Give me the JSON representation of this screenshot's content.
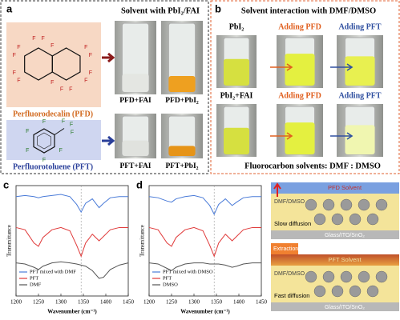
{
  "panel_a": {
    "label": "a",
    "heading": "Solvent with PbI₂/FAI",
    "pfd_name": "Perfluorodecalin (PFD)",
    "pft_name": "Perfluorotoluene (PFT)",
    "pfd_atoms": [
      "F",
      "F",
      "F",
      "F",
      "F",
      "F",
      "F",
      "F",
      "F",
      "F",
      "F",
      "F",
      "F",
      "F",
      "F",
      "F",
      "F",
      "F"
    ],
    "pft_atoms": [
      "F",
      "F",
      "F",
      "F",
      "F",
      "F",
      "F",
      "F"
    ],
    "vials": [
      "PFD+FAI",
      "PFD+PbI₂",
      "PFT+FAI",
      "PFT+PbI₂"
    ]
  },
  "panel_b": {
    "label": "b",
    "heading": "Solvent interaction with DMF/DMSO",
    "rows": [
      "PbI₂",
      "PbI₂+FAI"
    ],
    "columns": [
      "Adding PFD",
      "Adding PFT",
      "Adding PFD",
      "Adding PFT"
    ],
    "footer": "Fluorocarbon solvents: DMF : DMSO"
  },
  "chart_data": [
    {
      "type": "line",
      "panel": "c",
      "x_label": "Wavenumber (cm⁻¹)",
      "y_label": "Transmittance",
      "x": [
        1200,
        1220,
        1240,
        1250,
        1260,
        1280,
        1300,
        1320,
        1335,
        1345,
        1355,
        1370,
        1385,
        1395,
        1410,
        1430,
        1450
      ],
      "xlim": [
        1200,
        1450
      ],
      "xticks": [
        1200,
        1250,
        1300,
        1350,
        1400,
        1450
      ],
      "ylim": [
        0,
        10
      ],
      "reference_line": 1345,
      "legend": "lower left",
      "series": [
        {
          "name": "PFT mixed with DMF",
          "color": "#4a7bd8",
          "values": [
            9.0,
            9.1,
            9.0,
            8.9,
            9.0,
            9.1,
            9.2,
            9.0,
            8.3,
            7.6,
            8.4,
            8.8,
            8.0,
            8.4,
            8.9,
            9.0,
            9.0
          ]
        },
        {
          "name": "PFT",
          "color": "#e03a3a",
          "values": [
            6.2,
            6.0,
            4.8,
            4.5,
            5.3,
            6.0,
            6.2,
            5.9,
            4.6,
            3.6,
            4.8,
            5.6,
            5.0,
            5.4,
            6.0,
            6.2,
            6.2
          ]
        },
        {
          "name": "DMF",
          "color": "#555555",
          "values": [
            3.0,
            2.9,
            2.6,
            2.4,
            2.7,
            3.0,
            3.1,
            3.0,
            2.9,
            2.8,
            2.7,
            2.3,
            1.6,
            1.7,
            2.4,
            2.8,
            3.0
          ]
        }
      ]
    },
    {
      "type": "line",
      "panel": "d",
      "x_label": "Wavenumber (cm⁻¹)",
      "y_label": "Transmittance",
      "x": [
        1200,
        1220,
        1240,
        1250,
        1260,
        1280,
        1300,
        1320,
        1335,
        1345,
        1355,
        1370,
        1385,
        1395,
        1410,
        1430,
        1450
      ],
      "xlim": [
        1200,
        1450
      ],
      "xticks": [
        1200,
        1250,
        1300,
        1350,
        1400,
        1450
      ],
      "ylim": [
        0,
        10
      ],
      "reference_line": 1345,
      "legend": "lower left",
      "series": [
        {
          "name": "PFT mixed with DMSO",
          "color": "#4a7bd8",
          "values": [
            9.0,
            8.9,
            8.6,
            8.5,
            8.8,
            9.0,
            9.1,
            8.9,
            8.2,
            7.4,
            8.3,
            8.8,
            8.2,
            8.5,
            8.9,
            9.0,
            9.0
          ]
        },
        {
          "name": "PFT",
          "color": "#e03a3a",
          "values": [
            6.2,
            6.0,
            4.8,
            4.5,
            5.3,
            6.0,
            6.2,
            5.9,
            4.6,
            3.6,
            4.8,
            5.6,
            5.0,
            5.4,
            6.0,
            6.2,
            6.2
          ]
        },
        {
          "name": "DMSO",
          "color": "#555555",
          "values": [
            3.0,
            2.9,
            2.5,
            2.3,
            2.6,
            2.9,
            3.0,
            3.0,
            2.9,
            2.9,
            2.9,
            2.8,
            2.6,
            2.7,
            2.9,
            3.0,
            3.0
          ]
        }
      ]
    }
  ],
  "panel_e": {
    "label": "e",
    "top": {
      "solvent": "PFD Solvent",
      "layer": "DMF/DMSO",
      "process": "Slow diffusion",
      "substrate": "Glass/ITO/SnO₂"
    },
    "bottom": {
      "action": "Extraction",
      "solvent": "PFT Solvent",
      "layer": "DMF/DMSO",
      "process": "Fast diffusion",
      "substrate": "Glass/ITO/SnO₂"
    }
  }
}
